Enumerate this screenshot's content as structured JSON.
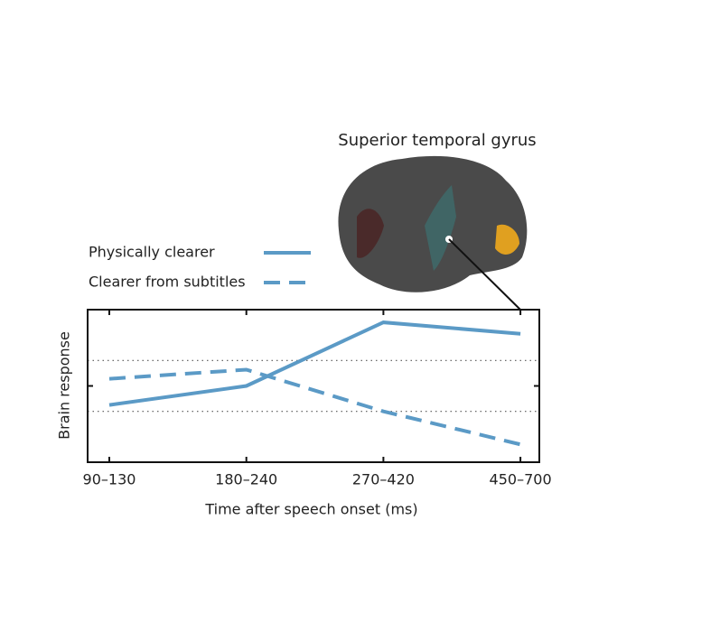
{
  "chart_data": {
    "type": "line",
    "title": "Superior temporal gyrus",
    "x_label": "Time after speech onset (ms)",
    "y_label": "Brain response",
    "categories": [
      "90–130",
      "180–240",
      "270–420",
      "450–700"
    ],
    "series": [
      {
        "name": "Physically clearer",
        "color": "#5b9ac6",
        "dash": false,
        "values": [
          -0.75,
          0,
          2.5,
          2.05
        ]
      },
      {
        "name": "Clearer from subtitles",
        "color": "#5b9ac6",
        "dash": true,
        "values": [
          0.28,
          0.64,
          -1.0,
          -2.3
        ]
      }
    ],
    "ylim": [
      -3,
      3
    ],
    "yticks": [
      0
    ],
    "reference_lines": [
      -1,
      1
    ]
  }
}
